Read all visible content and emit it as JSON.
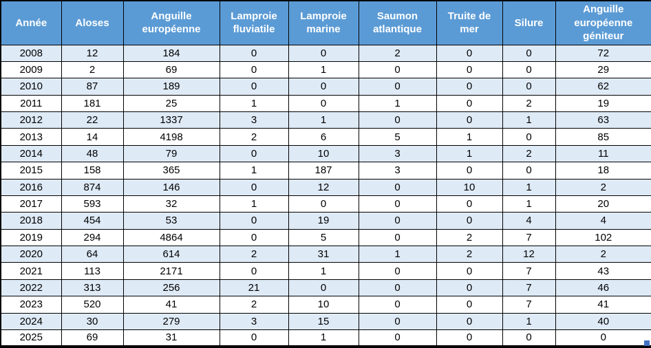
{
  "colors": {
    "header_bg": "#5B9BD5",
    "header_text": "#FFFFFF",
    "band_row_bg": "#DEEAF6",
    "plain_row_bg": "#FFFFFF",
    "border": "#000000",
    "fill_handle": "#4472C4"
  },
  "table": {
    "columns": [
      "Année",
      "Aloses",
      "Anguille européenne",
      "Lamproie fluviatile",
      "Lamproie marine",
      "Saumon atlantique",
      "Truite de mer",
      "Silure",
      "Anguille européenne géniteur"
    ],
    "rows": [
      {
        "cells": [
          "2008",
          "12",
          "184",
          "0",
          "0",
          "2",
          "0",
          "0",
          "72"
        ]
      },
      {
        "cells": [
          "2009",
          "2",
          "69",
          "0",
          "1",
          "0",
          "0",
          "0",
          "29"
        ]
      },
      {
        "cells": [
          "2010",
          "87",
          "189",
          "0",
          "0",
          "0",
          "0",
          "0",
          "62"
        ]
      },
      {
        "cells": [
          "2011",
          "181",
          "25",
          "1",
          "0",
          "1",
          "0",
          "2",
          "19"
        ]
      },
      {
        "cells": [
          "2012",
          "22",
          "1337",
          "3",
          "1",
          "0",
          "0",
          "1",
          "63"
        ]
      },
      {
        "cells": [
          "2013",
          "14",
          "4198",
          "2",
          "6",
          "5",
          "1",
          "0",
          "85"
        ]
      },
      {
        "cells": [
          "2014",
          "48",
          "79",
          "0",
          "10",
          "3",
          "1",
          "2",
          "11"
        ]
      },
      {
        "cells": [
          "2015",
          "158",
          "365",
          "1",
          "187",
          "3",
          "0",
          "0",
          "18"
        ]
      },
      {
        "cells": [
          "2016",
          "874",
          "146",
          "0",
          "12",
          "0",
          "10",
          "1",
          "2"
        ]
      },
      {
        "cells": [
          "2017",
          "593",
          "32",
          "1",
          "0",
          "0",
          "0",
          "1",
          "20"
        ]
      },
      {
        "cells": [
          "2018",
          "454",
          "53",
          "0",
          "19",
          "0",
          "0",
          "4",
          "4"
        ]
      },
      {
        "cells": [
          "2019",
          "294",
          "4864",
          "0",
          "5",
          "0",
          "2",
          "7",
          "102"
        ]
      },
      {
        "cells": [
          "2020",
          "64",
          "614",
          "2",
          "31",
          "1",
          "2",
          "12",
          "2"
        ]
      },
      {
        "cells": [
          "2021",
          "113",
          "2171",
          "0",
          "1",
          "0",
          "0",
          "7",
          "43"
        ]
      },
      {
        "cells": [
          "2022",
          "313",
          "256",
          "21",
          "0",
          "0",
          "0",
          "7",
          "46"
        ]
      },
      {
        "cells": [
          "2023",
          "520",
          "41",
          "2",
          "10",
          "0",
          "0",
          "7",
          "41"
        ]
      },
      {
        "cells": [
          "2024",
          "30",
          "279",
          "3",
          "15",
          "0",
          "0",
          "1",
          "40"
        ]
      },
      {
        "cells": [
          "2025",
          "69",
          "31",
          "0",
          "1",
          "0",
          "0",
          "0",
          "0"
        ]
      }
    ]
  },
  "chart_data": {
    "type": "table",
    "title": "",
    "columns": [
      "Année",
      "Aloses",
      "Anguille européenne",
      "Lamproie fluviatile",
      "Lamproie marine",
      "Saumon atlantique",
      "Truite de mer",
      "Silure",
      "Anguille européenne géniteur"
    ],
    "categories": [
      2008,
      2009,
      2010,
      2011,
      2012,
      2013,
      2014,
      2015,
      2016,
      2017,
      2018,
      2019,
      2020,
      2021,
      2022,
      2023,
      2024,
      2025
    ],
    "series": [
      {
        "name": "Aloses",
        "values": [
          12,
          2,
          87,
          181,
          22,
          14,
          48,
          158,
          874,
          593,
          454,
          294,
          64,
          113,
          313,
          520,
          30,
          69
        ]
      },
      {
        "name": "Anguille européenne",
        "values": [
          184,
          69,
          189,
          25,
          1337,
          4198,
          79,
          365,
          146,
          32,
          53,
          4864,
          614,
          2171,
          256,
          41,
          279,
          31
        ]
      },
      {
        "name": "Lamproie fluviatile",
        "values": [
          0,
          0,
          0,
          1,
          3,
          2,
          0,
          1,
          0,
          1,
          0,
          0,
          2,
          0,
          21,
          2,
          3,
          0
        ]
      },
      {
        "name": "Lamproie marine",
        "values": [
          0,
          1,
          0,
          0,
          1,
          6,
          10,
          187,
          12,
          0,
          19,
          5,
          31,
          1,
          0,
          10,
          15,
          1
        ]
      },
      {
        "name": "Saumon atlantique",
        "values": [
          2,
          0,
          0,
          1,
          0,
          5,
          3,
          3,
          0,
          0,
          0,
          0,
          1,
          0,
          0,
          0,
          0,
          0
        ]
      },
      {
        "name": "Truite de mer",
        "values": [
          0,
          0,
          0,
          0,
          0,
          1,
          1,
          0,
          10,
          0,
          0,
          2,
          2,
          0,
          0,
          0,
          0,
          0
        ]
      },
      {
        "name": "Silure",
        "values": [
          0,
          0,
          0,
          2,
          1,
          0,
          2,
          0,
          1,
          1,
          4,
          7,
          12,
          7,
          7,
          7,
          1,
          0
        ]
      },
      {
        "name": "Anguille européenne géniteur",
        "values": [
          72,
          29,
          62,
          19,
          63,
          85,
          11,
          18,
          2,
          20,
          4,
          102,
          2,
          43,
          46,
          41,
          40,
          0
        ]
      }
    ]
  }
}
